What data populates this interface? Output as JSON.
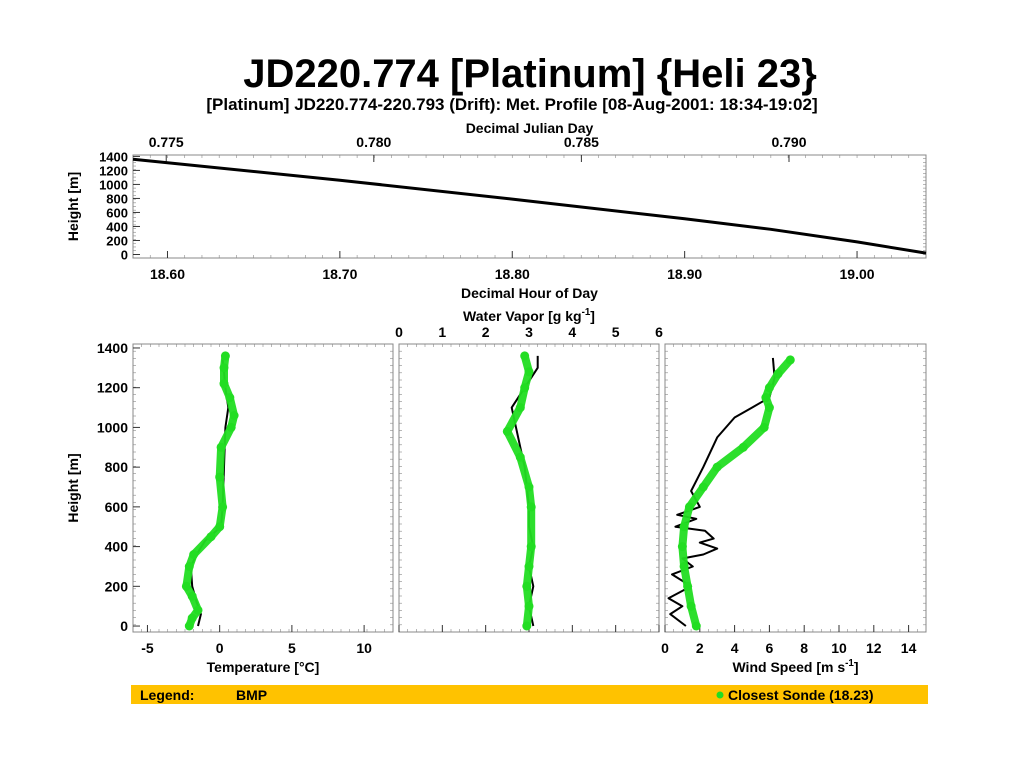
{
  "slide_title": "JD220.774 [Platinum] {Heli 23}",
  "colors": {
    "bmp": "#000000",
    "sonde": "#22dd22",
    "legend_bg": "#ffc200",
    "frame": "#888888"
  },
  "chart_data": [
    {
      "type": "line",
      "title": "[Platinum] JD220.774-220.793 (Drift): Met. Profile [08-Aug-2001: 18:34-19:02]",
      "xlabel": "Decimal Hour of Day",
      "x2label": "Decimal Julian Day",
      "ylabel": "Height [m]",
      "xlim": [
        18.58,
        19.04
      ],
      "x2lim": [
        0.7742,
        0.7933
      ],
      "ylim": [
        -50,
        1420
      ],
      "xticks": [
        18.6,
        18.7,
        18.8,
        18.9,
        19.0
      ],
      "xtick_labels": [
        "18.60",
        "18.70",
        "18.80",
        "18.90",
        "19.00"
      ],
      "x2ticks": [
        0.775,
        0.78,
        0.785,
        0.79
      ],
      "x2tick_labels": [
        "0.775",
        "0.780",
        "0.785",
        "0.790"
      ],
      "yticks": [
        0,
        200,
        400,
        600,
        800,
        1000,
        1200,
        1400
      ],
      "ytick_labels": [
        "0",
        "200",
        "400",
        "600",
        "800",
        "1000",
        "1200",
        "1400"
      ],
      "series": [
        {
          "x": [
            18.58,
            18.7,
            18.8,
            18.9,
            18.95,
            19.0,
            19.04
          ],
          "y": [
            1360,
            1060,
            790,
            510,
            360,
            180,
            20
          ]
        }
      ]
    },
    {
      "type": "line",
      "xlabel": "Temperature [°C]",
      "ylabel": "Height [m]",
      "xlim": [
        -6,
        12
      ],
      "ylim": [
        -30,
        1420
      ],
      "xticks": [
        -5,
        0,
        5,
        10
      ],
      "xtick_labels": [
        "-5",
        "0",
        "5",
        "10"
      ],
      "yticks": [
        0,
        200,
        400,
        600,
        800,
        1000,
        1200,
        1400
      ],
      "ytick_labels": [
        "0",
        "200",
        "400",
        "600",
        "800",
        "1000",
        "1200",
        "1400"
      ],
      "series": [
        {
          "name": "BMP",
          "x": [
            -1.5,
            -1.3,
            -1.6,
            -1.9,
            -2.0,
            -1.6,
            -1.0,
            0.1,
            0.2,
            0.3,
            0.4,
            0.6,
            0.4,
            0.3,
            0.2
          ],
          "y": [
            0,
            60,
            120,
            200,
            300,
            360,
            430,
            500,
            600,
            800,
            1000,
            1100,
            1200,
            1280,
            1340
          ]
        },
        {
          "name": "Closest Sonde (18.23)",
          "x": [
            -2.1,
            -1.9,
            -1.5,
            -1.9,
            -2.3,
            -2.1,
            -1.8,
            -0.6,
            0.0,
            0.2,
            0.0,
            0.1,
            0.8,
            1.0,
            0.7,
            0.3,
            0.3,
            0.4
          ],
          "y": [
            0,
            40,
            80,
            150,
            200,
            300,
            360,
            450,
            500,
            600,
            750,
            900,
            1000,
            1060,
            1150,
            1220,
            1300,
            1360
          ]
        }
      ]
    },
    {
      "type": "line",
      "xlabel": "Water Vapor [g kg-1]",
      "xlim": [
        0,
        6
      ],
      "ylim": [
        -30,
        1420
      ],
      "xticks": [
        0,
        1,
        2,
        3,
        4,
        5,
        6
      ],
      "xtick_labels": [
        "0",
        "1",
        "2",
        "3",
        "4",
        "5",
        "6"
      ],
      "series": [
        {
          "name": "BMP",
          "x": [
            3.1,
            3.0,
            3.1,
            3.0,
            3.1,
            3.0,
            3.0,
            2.9,
            2.8,
            2.7,
            2.6,
            2.9,
            3.2,
            3.2
          ],
          "y": [
            0,
            100,
            200,
            300,
            400,
            500,
            600,
            800,
            900,
            1000,
            1100,
            1200,
            1300,
            1360
          ]
        },
        {
          "name": "Closest Sonde (18.23)",
          "x": [
            2.95,
            3.0,
            2.95,
            3.0,
            3.05,
            3.05,
            3.0,
            2.8,
            2.5,
            2.8,
            2.9,
            3.0,
            2.9
          ],
          "y": [
            0,
            100,
            200,
            300,
            400,
            600,
            700,
            850,
            980,
            1100,
            1200,
            1280,
            1360
          ]
        }
      ]
    },
    {
      "type": "line",
      "xlabel": "Wind Speed [m s-1]",
      "xlim": [
        0,
        15
      ],
      "ylim": [
        -30,
        1420
      ],
      "xticks": [
        0,
        2,
        4,
        6,
        8,
        10,
        12,
        14
      ],
      "xtick_labels": [
        "0",
        "2",
        "4",
        "6",
        "8",
        "10",
        "12",
        "14"
      ],
      "series": [
        {
          "name": "BMP",
          "x": [
            1.2,
            0.3,
            1.0,
            0.2,
            1.5,
            0.4,
            1.6,
            1.0,
            2.2,
            3.0,
            2.0,
            2.8,
            2.3,
            0.6,
            1.8,
            0.7,
            2.0,
            1.5,
            2.2,
            3.0,
            4.0,
            5.0,
            6.0,
            6.3,
            6.2
          ],
          "y": [
            0,
            60,
            100,
            140,
            200,
            260,
            300,
            340,
            360,
            390,
            420,
            440,
            480,
            500,
            540,
            560,
            600,
            680,
            800,
            950,
            1050,
            1100,
            1150,
            1250,
            1350
          ]
        },
        {
          "name": "Closest Sonde (18.23)",
          "x": [
            1.8,
            1.5,
            1.3,
            1.1,
            1.0,
            1.1,
            1.4,
            2.2,
            3.0,
            4.5,
            5.7,
            6.0,
            5.8,
            6.0,
            6.5,
            7.2
          ],
          "y": [
            0,
            100,
            200,
            300,
            400,
            500,
            600,
            700,
            800,
            900,
            1000,
            1100,
            1150,
            1200,
            1270,
            1340
          ]
        }
      ]
    }
  ],
  "legend": {
    "label": "Legend:",
    "bmp_label": "BMP",
    "sonde_label": "Closest Sonde (18.23)"
  }
}
